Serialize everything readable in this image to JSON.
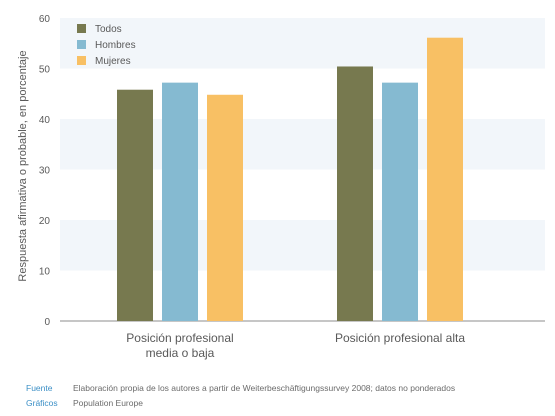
{
  "chart_data": {
    "type": "bar",
    "categories": [
      "Posición profesional\nmedia o baja",
      "Posición profesional alta"
    ],
    "series": [
      {
        "name": "Todos",
        "color": "#77794f",
        "values": [
          45.8,
          50.4
        ]
      },
      {
        "name": "Hombres",
        "color": "#85bad1",
        "values": [
          47.2,
          47.2
        ]
      },
      {
        "name": "Mujeres",
        "color": "#f8c064",
        "values": [
          44.8,
          56.1
        ]
      }
    ],
    "title": "",
    "xlabel": "",
    "ylabel": "Respuesta afirmativa o probable, en porcentaje",
    "ylim": [
      0,
      60
    ],
    "yticks": [
      "0",
      "10",
      "20",
      "30",
      "40",
      "50",
      "60"
    ],
    "legend_position": "top-left",
    "band_color": "#f2f6fa"
  },
  "footer": {
    "source_label": "Fuente",
    "source_text": "Elaboración propia de los autores a partir de Weiterbeschäftigungssurvey 2008; datos no ponderados",
    "graphics_label": "Gráficos",
    "graphics_text": "Population Europe"
  }
}
